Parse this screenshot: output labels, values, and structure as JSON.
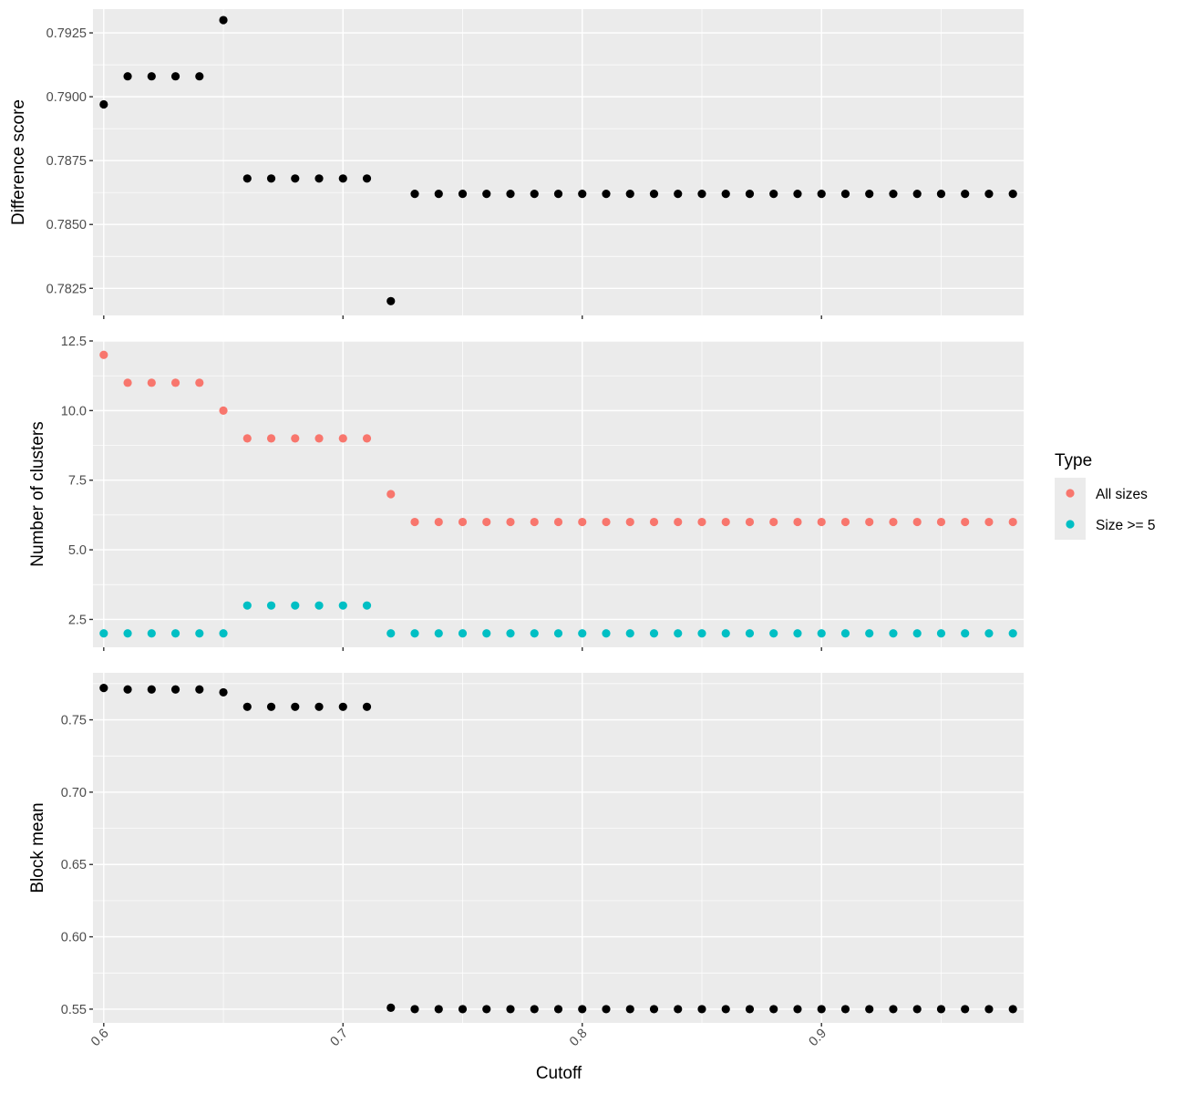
{
  "chart_data": {
    "type": "scatter",
    "xlabel": "Cutoff",
    "x": [
      0.6,
      0.61,
      0.62,
      0.63,
      0.64,
      0.65,
      0.66,
      0.67,
      0.68,
      0.69,
      0.7,
      0.71,
      0.72,
      0.73,
      0.74,
      0.75,
      0.76,
      0.77,
      0.78,
      0.79,
      0.8,
      0.81,
      0.82,
      0.83,
      0.84,
      0.85,
      0.86,
      0.87,
      0.88,
      0.89,
      0.9,
      0.91,
      0.92,
      0.93,
      0.94,
      0.95,
      0.96,
      0.97,
      0.98
    ],
    "x_ticks": [
      0.6,
      0.7,
      0.8,
      0.9
    ],
    "x_tick_labels": [
      "0.6",
      "0.7",
      "0.8",
      "0.9"
    ],
    "xlim": [
      0.5955,
      0.9845
    ],
    "grid": true,
    "legend": {
      "title": "Type",
      "placement": "right",
      "entries": [
        {
          "label": "All sizes",
          "color": "#F8766D"
        },
        {
          "label": "Size >= 5",
          "color": "#00BFC4"
        }
      ]
    },
    "panels": [
      {
        "ylabel": "Difference score",
        "ylim": [
          0.78144,
          0.79343
        ],
        "y_ticks": [
          0.7825,
          0.785,
          0.7875,
          0.79,
          0.7925
        ],
        "y_tick_labels": [
          "0.7825",
          "0.7850",
          "0.7875",
          "0.7900",
          "0.7925"
        ],
        "series": [
          {
            "color": "#000000",
            "values": [
              0.7897,
              0.7908,
              0.7908,
              0.7908,
              0.7908,
              0.793,
              0.7868,
              0.7868,
              0.7868,
              0.7868,
              0.7868,
              0.7868,
              0.782,
              0.7862,
              0.7862,
              0.7862,
              0.7862,
              0.7862,
              0.7862,
              0.7862,
              0.7862,
              0.7862,
              0.7862,
              0.7862,
              0.7862,
              0.7862,
              0.7862,
              0.7862,
              0.7862,
              0.7862,
              0.7862,
              0.7862,
              0.7862,
              0.7862,
              0.7862,
              0.7862,
              0.7862,
              0.7862,
              0.7862
            ]
          }
        ]
      },
      {
        "ylabel": "Number of clusters",
        "ylim": [
          1.5,
          12.5
        ],
        "y_ticks": [
          2.5,
          5.0,
          7.5,
          10.0,
          12.5
        ],
        "y_tick_labels": [
          "2.5",
          "5.0",
          "7.5",
          "10.0",
          "12.5"
        ],
        "series": [
          {
            "name": "All sizes",
            "color": "#F8766D",
            "values": [
              12,
              11,
              11,
              11,
              11,
              10,
              9,
              9,
              9,
              9,
              9,
              9,
              7,
              6,
              6,
              6,
              6,
              6,
              6,
              6,
              6,
              6,
              6,
              6,
              6,
              6,
              6,
              6,
              6,
              6,
              6,
              6,
              6,
              6,
              6,
              6,
              6,
              6,
              6
            ]
          },
          {
            "name": "Size >= 5",
            "color": "#00BFC4",
            "values": [
              2,
              2,
              2,
              2,
              2,
              2,
              3,
              3,
              3,
              3,
              3,
              3,
              2,
              2,
              2,
              2,
              2,
              2,
              2,
              2,
              2,
              2,
              2,
              2,
              2,
              2,
              2,
              2,
              2,
              2,
              2,
              2,
              2,
              2,
              2,
              2,
              2,
              2,
              2
            ]
          }
        ]
      },
      {
        "ylabel": "Block mean",
        "ylim": [
          0.5405,
          0.7825
        ],
        "y_ticks": [
          0.55,
          0.6,
          0.65,
          0.7,
          0.75
        ],
        "y_tick_labels": [
          "0.55",
          "0.60",
          "0.65",
          "0.70",
          "0.75"
        ],
        "series": [
          {
            "color": "#000000",
            "values": [
              0.772,
              0.771,
              0.771,
              0.771,
              0.771,
              0.769,
              0.759,
              0.759,
              0.759,
              0.759,
              0.759,
              0.759,
              0.551,
              0.55,
              0.55,
              0.55,
              0.55,
              0.55,
              0.55,
              0.55,
              0.55,
              0.55,
              0.55,
              0.55,
              0.55,
              0.55,
              0.55,
              0.55,
              0.55,
              0.55,
              0.55,
              0.55,
              0.55,
              0.55,
              0.55,
              0.55,
              0.55,
              0.55,
              0.55
            ]
          }
        ]
      }
    ]
  }
}
